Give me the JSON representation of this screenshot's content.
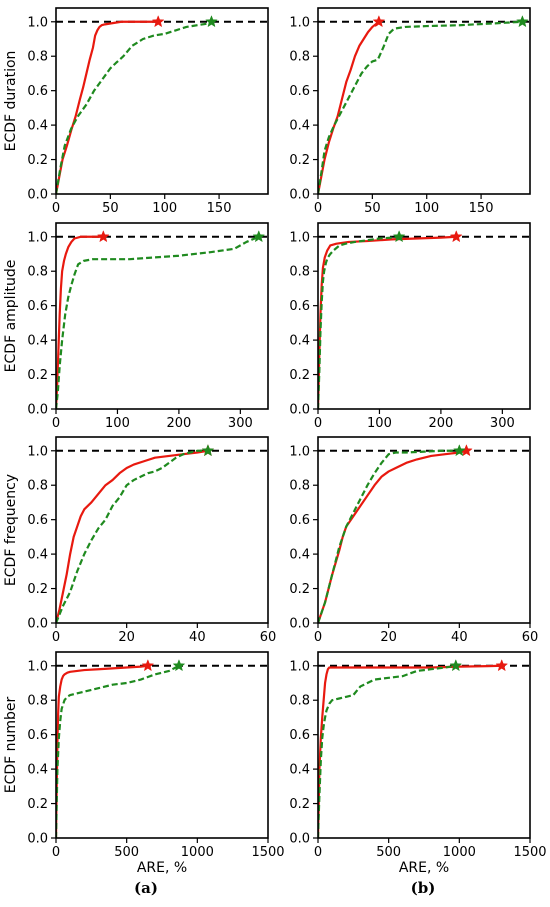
{
  "panel_labels": [
    "(a)",
    "(b)"
  ],
  "chart_data": [
    {
      "type": "line",
      "row": 0,
      "col": 0,
      "ylabel": "ECDF duration",
      "xlabel": "",
      "xlim": [
        0,
        195
      ],
      "ylim": [
        0,
        1.08
      ],
      "xticks": [
        0,
        50,
        100,
        150
      ],
      "yticks": [
        0.0,
        0.2,
        0.4,
        0.6,
        0.8,
        1.0
      ],
      "reference_line": 1.0,
      "series": [
        {
          "color": "#e8190f",
          "style": "solid",
          "marker_end": true,
          "x": [
            0,
            3,
            6,
            10,
            14,
            18,
            22,
            25,
            28,
            31,
            34,
            36,
            38,
            40,
            42,
            45,
            50,
            55,
            60,
            70,
            80,
            90,
            94
          ],
          "y": [
            0,
            0.1,
            0.2,
            0.28,
            0.37,
            0.45,
            0.55,
            0.62,
            0.7,
            0.78,
            0.85,
            0.92,
            0.95,
            0.97,
            0.98,
            0.985,
            0.99,
            0.995,
            1.0,
            1.0,
            1.0,
            1.0,
            1.0
          ]
        },
        {
          "color": "#1f8a1f",
          "style": "dashed",
          "marker_end": true,
          "x": [
            0,
            4,
            8,
            14,
            20,
            28,
            35,
            42,
            50,
            55,
            62,
            70,
            80,
            90,
            100,
            110,
            120,
            130,
            140,
            143
          ],
          "y": [
            0,
            0.15,
            0.28,
            0.38,
            0.45,
            0.52,
            0.6,
            0.66,
            0.73,
            0.76,
            0.8,
            0.86,
            0.9,
            0.92,
            0.93,
            0.95,
            0.97,
            0.98,
            0.99,
            1.0
          ]
        }
      ]
    },
    {
      "type": "line",
      "row": 0,
      "col": 1,
      "ylabel": "",
      "xlabel": "",
      "xlim": [
        0,
        195
      ],
      "ylim": [
        0,
        1.08
      ],
      "xticks": [
        0,
        50,
        100,
        150
      ],
      "yticks": [
        0.0,
        0.2,
        0.4,
        0.6,
        0.8,
        1.0
      ],
      "reference_line": 1.0,
      "series": [
        {
          "color": "#e8190f",
          "style": "solid",
          "marker_end": true,
          "x": [
            0,
            3,
            6,
            10,
            14,
            18,
            22,
            26,
            30,
            34,
            38,
            42,
            46,
            50,
            54,
            56
          ],
          "y": [
            0,
            0.1,
            0.2,
            0.3,
            0.38,
            0.45,
            0.55,
            0.65,
            0.72,
            0.8,
            0.86,
            0.9,
            0.94,
            0.97,
            0.99,
            1.0
          ]
        },
        {
          "color": "#1f8a1f",
          "style": "dashed",
          "marker_end": true,
          "x": [
            0,
            3,
            6,
            10,
            15,
            20,
            25,
            30,
            35,
            40,
            45,
            50,
            55,
            60,
            65,
            70,
            80,
            100,
            130,
            160,
            188
          ],
          "y": [
            0,
            0.12,
            0.25,
            0.33,
            0.4,
            0.46,
            0.52,
            0.58,
            0.64,
            0.7,
            0.74,
            0.77,
            0.78,
            0.85,
            0.93,
            0.96,
            0.97,
            0.975,
            0.98,
            0.99,
            1.0
          ]
        }
      ]
    },
    {
      "type": "line",
      "row": 1,
      "col": 0,
      "ylabel": "ECDF amplitude",
      "xlabel": "",
      "xlim": [
        0,
        345
      ],
      "ylim": [
        0,
        1.08
      ],
      "xticks": [
        0,
        100,
        200,
        300
      ],
      "yticks": [
        0.0,
        0.2,
        0.4,
        0.6,
        0.8,
        1.0
      ],
      "reference_line": 1.0,
      "series": [
        {
          "color": "#e8190f",
          "style": "solid",
          "marker_end": true,
          "x": [
            0,
            2,
            4,
            6,
            8,
            10,
            13,
            16,
            20,
            25,
            30,
            40,
            50,
            60,
            77
          ],
          "y": [
            0,
            0.15,
            0.35,
            0.55,
            0.7,
            0.8,
            0.86,
            0.9,
            0.94,
            0.97,
            0.99,
            1.0,
            1.0,
            1.0,
            1.0
          ]
        },
        {
          "color": "#1f8a1f",
          "style": "dashed",
          "marker_end": true,
          "x": [
            0,
            3,
            6,
            10,
            15,
            20,
            25,
            30,
            36,
            45,
            60,
            80,
            120,
            160,
            200,
            250,
            290,
            310,
            330
          ],
          "y": [
            0,
            0.1,
            0.25,
            0.4,
            0.55,
            0.65,
            0.72,
            0.78,
            0.84,
            0.86,
            0.87,
            0.87,
            0.87,
            0.88,
            0.89,
            0.91,
            0.93,
            0.97,
            1.0
          ]
        }
      ]
    },
    {
      "type": "line",
      "row": 1,
      "col": 1,
      "ylabel": "",
      "xlabel": "",
      "xlim": [
        0,
        345
      ],
      "ylim": [
        0,
        1.08
      ],
      "xticks": [
        0,
        100,
        200,
        300
      ],
      "yticks": [
        0.0,
        0.2,
        0.4,
        0.6,
        0.8,
        1.0
      ],
      "reference_line": 1.0,
      "series": [
        {
          "color": "#e8190f",
          "style": "solid",
          "marker_end": true,
          "x": [
            0,
            2,
            4,
            6,
            8,
            11,
            15,
            20,
            30,
            50,
            80,
            120,
            160,
            200,
            225
          ],
          "y": [
            0,
            0.3,
            0.55,
            0.72,
            0.82,
            0.88,
            0.92,
            0.95,
            0.96,
            0.97,
            0.975,
            0.985,
            0.99,
            0.995,
            1.0
          ]
        },
        {
          "color": "#1f8a1f",
          "style": "dashed",
          "marker_end": true,
          "x": [
            0,
            2,
            4,
            6,
            8,
            10,
            13,
            16,
            20,
            25,
            35,
            45,
            60,
            80,
            100,
            120,
            132
          ],
          "y": [
            0,
            0.2,
            0.45,
            0.62,
            0.74,
            0.8,
            0.85,
            0.88,
            0.9,
            0.92,
            0.95,
            0.96,
            0.97,
            0.98,
            0.99,
            0.995,
            1.0
          ]
        }
      ]
    },
    {
      "type": "line",
      "row": 2,
      "col": 0,
      "ylabel": "ECDF frequency",
      "xlabel": "",
      "xlim": [
        0,
        60
      ],
      "ylim": [
        0,
        1.08
      ],
      "xticks": [
        0,
        20,
        40,
        60
      ],
      "yticks": [
        0.0,
        0.2,
        0.4,
        0.6,
        0.8,
        1.0
      ],
      "reference_line": 1.0,
      "series": [
        {
          "color": "#e8190f",
          "style": "solid",
          "marker_end": true,
          "x": [
            0,
            1,
            2,
            3,
            4,
            5,
            6,
            7,
            8,
            10,
            12,
            14,
            16,
            18,
            20,
            22,
            25,
            28,
            32,
            36,
            40,
            43
          ],
          "y": [
            0,
            0.08,
            0.18,
            0.28,
            0.4,
            0.5,
            0.56,
            0.62,
            0.66,
            0.7,
            0.75,
            0.8,
            0.83,
            0.87,
            0.9,
            0.92,
            0.94,
            0.96,
            0.97,
            0.98,
            0.99,
            1.0
          ]
        },
        {
          "color": "#1f8a1f",
          "style": "dashed",
          "marker_end": true,
          "x": [
            0,
            2,
            4,
            6,
            8,
            10,
            12,
            14,
            16,
            18,
            20,
            22,
            24,
            26,
            28,
            30,
            32,
            34,
            36,
            38,
            40,
            43
          ],
          "y": [
            0,
            0.1,
            0.18,
            0.3,
            0.4,
            0.48,
            0.55,
            0.6,
            0.68,
            0.73,
            0.8,
            0.83,
            0.85,
            0.87,
            0.88,
            0.9,
            0.93,
            0.96,
            0.98,
            0.99,
            1.0,
            1.0
          ]
        }
      ]
    },
    {
      "type": "line",
      "row": 2,
      "col": 1,
      "ylabel": "",
      "xlabel": "",
      "xlim": [
        0,
        60
      ],
      "ylim": [
        0,
        1.08
      ],
      "xticks": [
        0,
        20,
        40,
        60
      ],
      "yticks": [
        0.0,
        0.2,
        0.4,
        0.6,
        0.8,
        1.0
      ],
      "reference_line": 1.0,
      "series": [
        {
          "color": "#e8190f",
          "style": "solid",
          "marker_end": true,
          "x": [
            0,
            1,
            2,
            3,
            4,
            5,
            6,
            7,
            8,
            10,
            12,
            14,
            16,
            18,
            20,
            22,
            25,
            28,
            32,
            36,
            40,
            42
          ],
          "y": [
            0,
            0.06,
            0.12,
            0.2,
            0.28,
            0.35,
            0.42,
            0.5,
            0.56,
            0.62,
            0.68,
            0.74,
            0.8,
            0.85,
            0.88,
            0.9,
            0.93,
            0.95,
            0.97,
            0.98,
            0.99,
            1.0
          ]
        },
        {
          "color": "#1f8a1f",
          "style": "dashed",
          "marker_end": true,
          "x": [
            0,
            1,
            2,
            3,
            4,
            5,
            6,
            7,
            8,
            10,
            12,
            14,
            16,
            18,
            20,
            22,
            25,
            30,
            35,
            40
          ],
          "y": [
            0,
            0.06,
            0.12,
            0.2,
            0.28,
            0.36,
            0.44,
            0.5,
            0.56,
            0.64,
            0.72,
            0.8,
            0.87,
            0.93,
            0.98,
            0.99,
            0.99,
            0.995,
            1.0,
            1.0
          ]
        }
      ]
    },
    {
      "type": "line",
      "row": 3,
      "col": 0,
      "ylabel": "ECDF number",
      "xlabel": "ARE, %",
      "xlim": [
        0,
        1500
      ],
      "ylim": [
        0,
        1.08
      ],
      "xticks": [
        0,
        500,
        1000,
        1500
      ],
      "yticks": [
        0.0,
        0.2,
        0.4,
        0.6,
        0.8,
        1.0
      ],
      "reference_line": 1.0,
      "series": [
        {
          "color": "#e8190f",
          "style": "solid",
          "marker_end": true,
          "x": [
            0,
            5,
            10,
            15,
            20,
            30,
            40,
            50,
            60,
            80,
            100,
            150,
            200,
            300,
            400,
            500,
            600,
            650
          ],
          "y": [
            0,
            0.3,
            0.55,
            0.72,
            0.82,
            0.88,
            0.92,
            0.94,
            0.95,
            0.96,
            0.965,
            0.97,
            0.975,
            0.98,
            0.985,
            0.99,
            0.995,
            1.0
          ]
        },
        {
          "color": "#1f8a1f",
          "style": "dashed",
          "marker_end": true,
          "x": [
            0,
            5,
            10,
            20,
            30,
            40,
            60,
            80,
            100,
            150,
            200,
            300,
            400,
            500,
            600,
            700,
            800,
            870
          ],
          "y": [
            0,
            0.2,
            0.4,
            0.58,
            0.68,
            0.75,
            0.8,
            0.82,
            0.83,
            0.84,
            0.85,
            0.87,
            0.89,
            0.9,
            0.92,
            0.95,
            0.97,
            1.0
          ]
        }
      ]
    },
    {
      "type": "line",
      "row": 3,
      "col": 1,
      "ylabel": "",
      "xlabel": "ARE, %",
      "xlim": [
        0,
        1500
      ],
      "ylim": [
        0,
        1.08
      ],
      "xticks": [
        0,
        500,
        1000,
        1500
      ],
      "yticks": [
        0.0,
        0.2,
        0.4,
        0.6,
        0.8,
        1.0
      ],
      "reference_line": 1.0,
      "series": [
        {
          "color": "#e8190f",
          "style": "solid",
          "marker_end": true,
          "x": [
            0,
            5,
            10,
            20,
            30,
            40,
            50,
            60,
            70,
            80,
            100,
            200,
            400,
            600,
            800,
            1000,
            1200,
            1300
          ],
          "y": [
            0,
            0.2,
            0.4,
            0.58,
            0.7,
            0.8,
            0.9,
            0.95,
            0.98,
            0.99,
            0.99,
            0.99,
            0.99,
            0.99,
            0.99,
            0.995,
            0.998,
            1.0
          ]
        },
        {
          "color": "#1f8a1f",
          "style": "dashed",
          "marker_end": true,
          "x": [
            0,
            10,
            20,
            30,
            40,
            50,
            60,
            80,
            100,
            150,
            200,
            250,
            300,
            400,
            500,
            600,
            700,
            800,
            900,
            975
          ],
          "y": [
            0,
            0.25,
            0.45,
            0.58,
            0.65,
            0.7,
            0.74,
            0.78,
            0.8,
            0.81,
            0.82,
            0.83,
            0.88,
            0.92,
            0.93,
            0.94,
            0.97,
            0.98,
            0.99,
            1.0
          ]
        }
      ]
    }
  ]
}
